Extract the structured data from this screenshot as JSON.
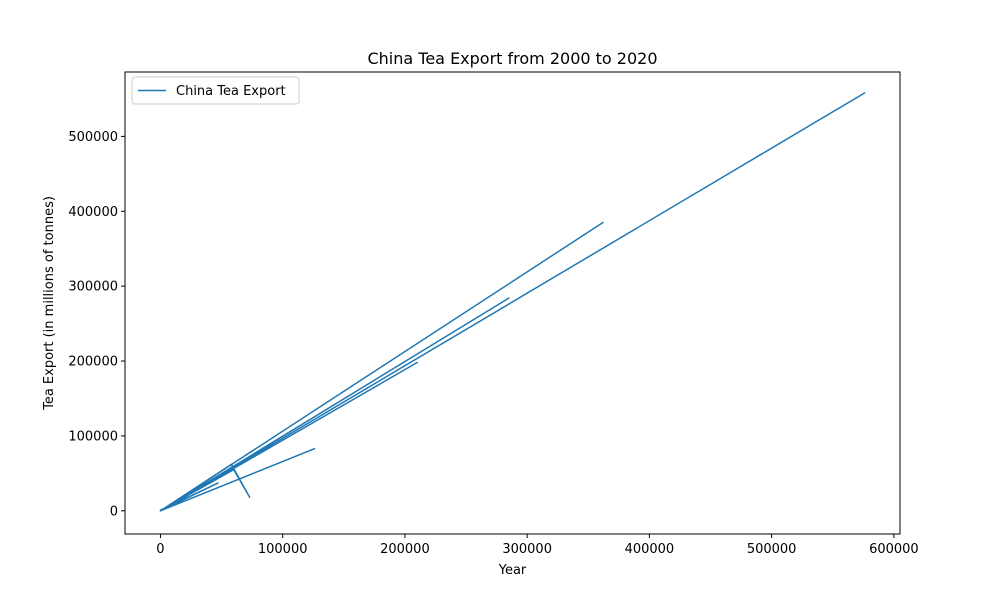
{
  "chart_data": {
    "type": "line",
    "title": "China Tea Export from 2000 to 2020",
    "xlabel": "Year",
    "ylabel": "Tea Export (in millions of tonnes)",
    "xlim": [
      -29000,
      605000
    ],
    "ylim": [
      -31000,
      586000
    ],
    "xticks": [
      0,
      100000,
      200000,
      300000,
      400000,
      500000,
      600000
    ],
    "xtick_labels": [
      "0",
      "100000",
      "200000",
      "300000",
      "400000",
      "500000",
      "600000"
    ],
    "yticks": [
      0,
      100000,
      200000,
      300000,
      400000,
      500000
    ],
    "ytick_labels": [
      "0",
      "100000",
      "200000",
      "300000",
      "400000",
      "500000"
    ],
    "grid": false,
    "legend_position": "upper-left",
    "series": [
      {
        "name": "China Tea Export",
        "color": "#1f77b4",
        "points": [
          [
            0,
            0
          ],
          [
            1000,
            2000
          ],
          [
            0,
            500
          ],
          [
            47000,
            37000
          ],
          [
            0,
            0
          ],
          [
            126000,
            83000
          ],
          [
            0,
            0
          ],
          [
            58000,
            62000
          ],
          [
            73000,
            18000
          ],
          [
            60000,
            55000
          ],
          [
            0,
            0
          ],
          [
            210000,
            198000
          ],
          [
            0,
            0
          ],
          [
            285000,
            284000
          ],
          [
            0,
            0
          ],
          [
            362000,
            385000
          ],
          [
            0,
            0
          ],
          [
            576000,
            558000
          ]
        ]
      }
    ]
  }
}
